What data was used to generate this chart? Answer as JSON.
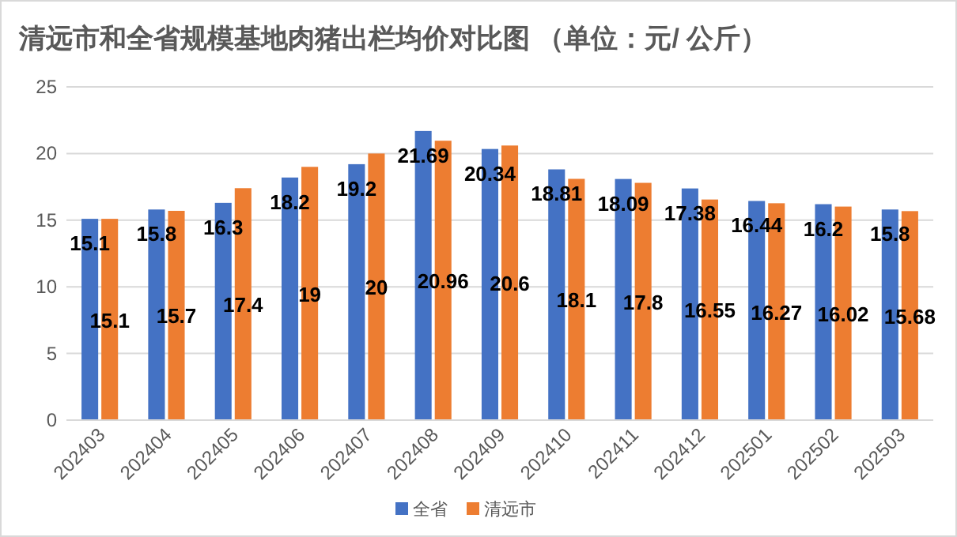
{
  "chart_data": {
    "type": "bar",
    "title": "清远市和全省规模基地肉猪出栏均价对比图 （单位：元/ 公斤）",
    "categories": [
      "202403",
      "202404",
      "202405",
      "202406",
      "202407",
      "202408",
      "202409",
      "202410",
      "202411",
      "202412",
      "202501",
      "202502",
      "202503"
    ],
    "series": [
      {
        "name": "全省",
        "color": "#4472c4",
        "values": [
          15.1,
          15.8,
          16.3,
          18.2,
          19.2,
          21.69,
          20.34,
          18.81,
          18.09,
          17.38,
          16.44,
          16.2,
          15.8
        ]
      },
      {
        "name": "清远市",
        "color": "#ed7d31",
        "values": [
          15.1,
          15.7,
          17.4,
          19,
          20,
          20.96,
          20.6,
          18.1,
          17.8,
          16.55,
          16.27,
          16.02,
          15.68
        ]
      }
    ],
    "ylim": [
      0,
      25
    ],
    "yticks": [
      0,
      5,
      10,
      15,
      20,
      25
    ],
    "grid": "y",
    "legend": "bottom",
    "data_labels": true
  }
}
